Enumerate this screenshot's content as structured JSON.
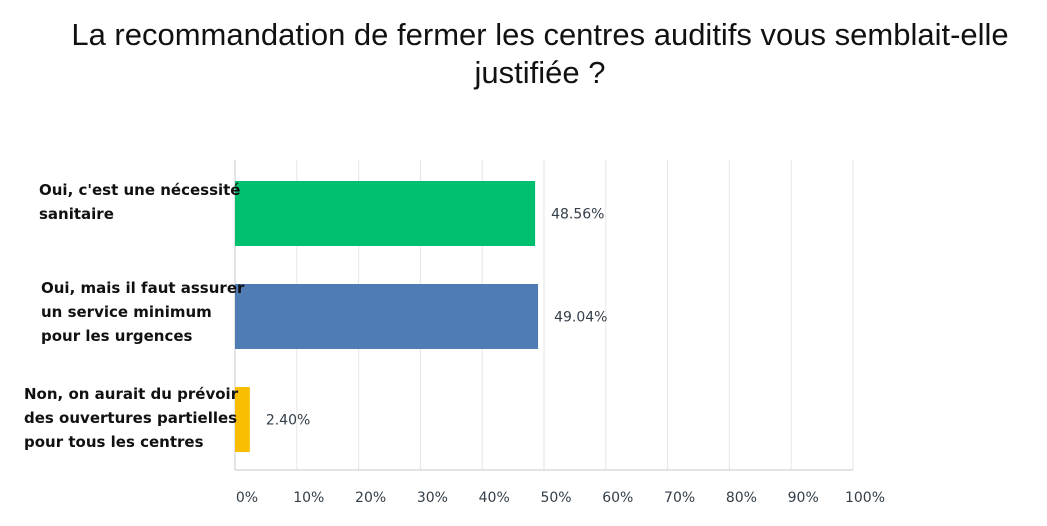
{
  "chart_data": {
    "type": "bar",
    "orientation": "horizontal",
    "title": "La recommandation de fermer les centres auditifs vous semblait-elle justifiée ?",
    "categories": [
      "Oui, c'est une nécessité sanitaire",
      "Oui, mais il faut assurer un service minimum pour les urgences",
      "Non, on aurait du prévoir des ouvertures partielles pour tous les centres"
    ],
    "values": [
      48.56,
      49.04,
      2.4
    ],
    "value_labels": [
      "48.56%",
      "49.04%",
      "2.40%"
    ],
    "colors": [
      "#00bf6f",
      "#507cb6",
      "#f9be00"
    ],
    "xlim": [
      0,
      100
    ],
    "x_ticks": [
      0,
      10,
      20,
      30,
      40,
      50,
      60,
      70,
      80,
      90,
      100
    ],
    "x_tick_labels": [
      "0%",
      "10%",
      "20%",
      "30%",
      "40%",
      "50%",
      "60%",
      "70%",
      "80%",
      "90%",
      "100%"
    ],
    "grid": true,
    "xlabel": "",
    "ylabel": ""
  },
  "colors": {
    "grid": "#e6e6e6",
    "axis": "#c8c8c8",
    "tick_text": "#333e48",
    "value_text": "#333e48"
  }
}
